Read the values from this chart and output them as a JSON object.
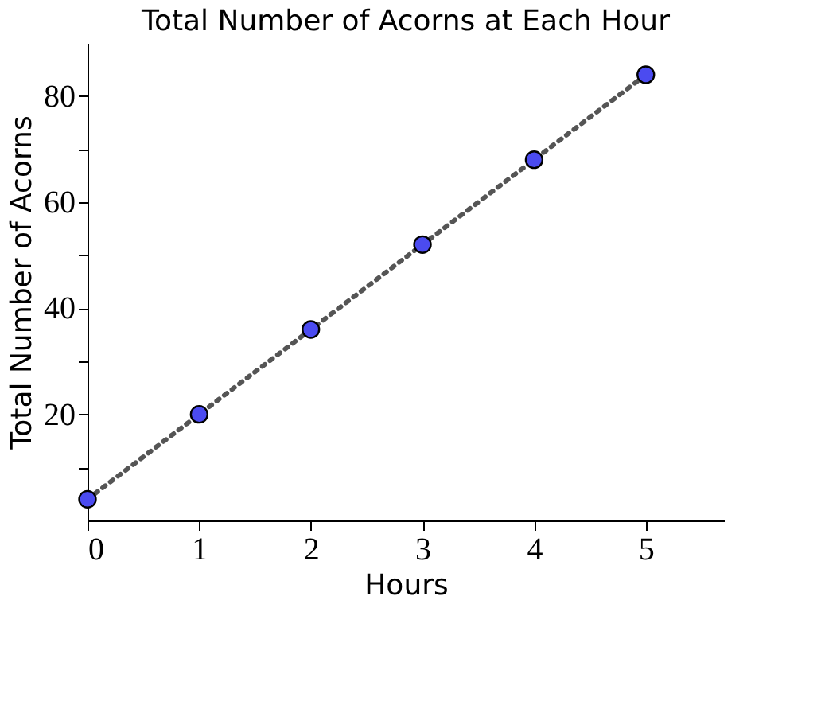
{
  "chart_data": {
    "type": "line",
    "title": "Total Number of Acorns at Each Hour",
    "xlabel": "Hours",
    "ylabel": "Total Number of Acorns",
    "x": [
      0,
      1,
      2,
      3,
      4,
      5
    ],
    "series": [
      {
        "color": "#555555",
        "values": [
          4,
          20,
          36,
          52,
          68,
          84
        ],
        "line_style": "dotted",
        "marker": "none"
      },
      {
        "type": "scatter",
        "color": "#4b4bf0",
        "values": [
          4,
          20,
          36,
          52,
          68,
          84
        ],
        "marker": "circle"
      }
    ],
    "xlim": [
      0,
      5.7
    ],
    "ylim": [
      0,
      90
    ],
    "xticks": [
      0,
      1,
      2,
      3,
      4,
      5
    ],
    "yticks": [
      {
        "value": 10,
        "label": null
      },
      20,
      {
        "value": 30,
        "label": null
      },
      40,
      {
        "value": 50,
        "label": null
      },
      60,
      {
        "value": 70,
        "label": null
      },
      80
    ],
    "grid": false
  }
}
